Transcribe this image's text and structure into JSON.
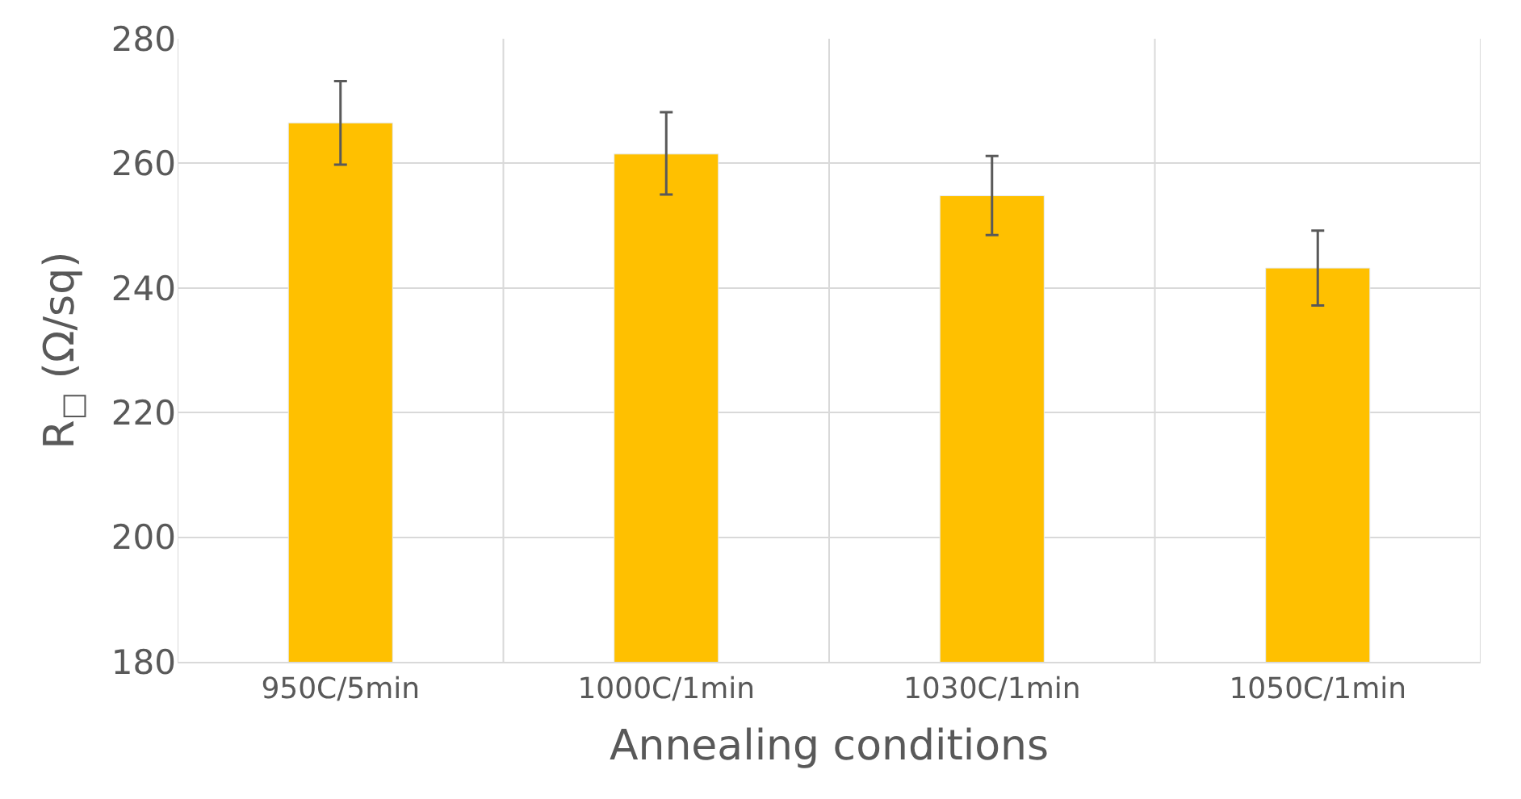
{
  "chart_data": {
    "type": "bar",
    "xlabel": "Annealing conditions",
    "ylabel": "R$_{□}$ (Ω/sq)",
    "categories": [
      "950C/5min",
      "1000C/1min",
      "1030C/1min",
      "1050C/1min"
    ],
    "values": [
      266.5,
      261.5,
      254.8,
      243.2
    ],
    "errors": [
      [
        259.8,
        273.2
      ],
      [
        255,
        268.2
      ],
      [
        248.5,
        261.2
      ],
      [
        237.2,
        249.2
      ]
    ],
    "color": "#ffc000",
    "ylim": [
      180,
      280
    ],
    "yticks": [
      180,
      200,
      220,
      240,
      260,
      280
    ],
    "grid": true
  }
}
